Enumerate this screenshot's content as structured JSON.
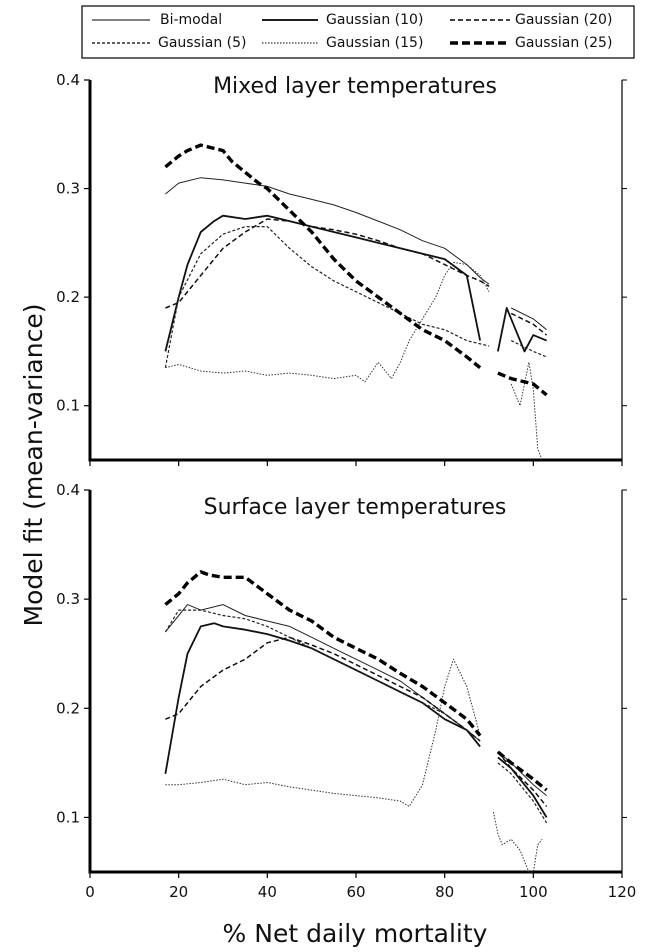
{
  "figure": {
    "ylabel": "Model fit (mean-variance)",
    "xlabel": "% Net daily mortality"
  },
  "legend": [
    {
      "label": "Bi-modal",
      "style": "thin-solid"
    },
    {
      "label": "Gaussian (10)",
      "style": "solid"
    },
    {
      "label": "Gaussian (20)",
      "style": "dashed"
    },
    {
      "label": "Gaussian (5)",
      "style": "fine-dashed"
    },
    {
      "label": "Gaussian (15)",
      "style": "dotted"
    },
    {
      "label": "Gaussian (25)",
      "style": "bold-dashed"
    }
  ],
  "chart_data": [
    {
      "type": "line",
      "title": "Mixed layer temperatures",
      "xlim": [
        0,
        120
      ],
      "ylim": [
        0.05,
        0.4
      ],
      "yticks": [
        0.1,
        0.2,
        0.3,
        0.4
      ],
      "ytick_labels": [
        "0.1",
        "0.2",
        "0.3",
        "0.4"
      ],
      "xticks": [
        0,
        20,
        40,
        60,
        80,
        100,
        120
      ],
      "series": [
        {
          "name": "Bi-modal",
          "style": "thin-solid",
          "color": "#222222",
          "x": [
            17,
            20,
            25,
            30,
            35,
            40,
            45,
            50,
            55,
            60,
            65,
            70,
            75,
            80,
            85,
            88,
            90,
            92,
            95,
            100,
            103
          ],
          "y": [
            0.295,
            0.305,
            0.31,
            0.308,
            0.305,
            0.302,
            0.295,
            0.29,
            0.285,
            0.278,
            0.27,
            0.262,
            0.252,
            0.245,
            0.23,
            0.218,
            0.212,
            null,
            0.19,
            0.18,
            0.17
          ]
        },
        {
          "name": "Gaussian (10)",
          "style": "solid",
          "color": "#111111",
          "x": [
            17,
            20,
            22,
            25,
            28,
            30,
            35,
            40,
            45,
            50,
            55,
            60,
            65,
            70,
            75,
            80,
            85,
            88,
            90,
            92,
            94,
            96,
            98,
            100,
            103
          ],
          "y": [
            0.15,
            0.2,
            0.23,
            0.26,
            0.27,
            0.275,
            0.272,
            0.275,
            0.27,
            0.265,
            0.26,
            0.255,
            0.25,
            0.245,
            0.24,
            0.235,
            0.22,
            0.16,
            null,
            0.15,
            0.19,
            0.17,
            0.15,
            0.165,
            0.16
          ]
        },
        {
          "name": "Gaussian (20)",
          "style": "dashed",
          "color": "#111111",
          "x": [
            17,
            20,
            25,
            30,
            35,
            40,
            45,
            50,
            55,
            60,
            65,
            70,
            75,
            80,
            85,
            88,
            90,
            92,
            95,
            100,
            103
          ],
          "y": [
            0.19,
            0.195,
            0.22,
            0.245,
            0.26,
            0.272,
            0.27,
            0.265,
            0.262,
            0.258,
            0.252,
            0.245,
            0.24,
            0.23,
            0.22,
            0.215,
            0.21,
            null,
            0.185,
            0.175,
            0.165
          ]
        },
        {
          "name": "Gaussian (5)",
          "style": "fine-dashed",
          "color": "#222222",
          "x": [
            17,
            20,
            25,
            30,
            35,
            40,
            45,
            50,
            55,
            60,
            65,
            70,
            75,
            80,
            85,
            90,
            92,
            95,
            100,
            103
          ],
          "y": [
            0.135,
            0.2,
            0.24,
            0.258,
            0.265,
            0.265,
            0.245,
            0.228,
            0.215,
            0.205,
            0.195,
            0.185,
            0.175,
            0.17,
            0.16,
            0.155,
            null,
            0.16,
            0.15,
            0.145
          ]
        },
        {
          "name": "Gaussian (15)",
          "style": "dotted",
          "color": "#333333",
          "x": [
            17,
            20,
            25,
            30,
            35,
            40,
            45,
            50,
            55,
            60,
            62,
            65,
            68,
            70,
            72,
            75,
            78,
            80,
            82,
            85,
            88,
            90,
            92,
            95,
            97,
            99,
            100,
            101,
            102
          ],
          "y": [
            0.135,
            0.138,
            0.132,
            0.13,
            0.132,
            0.128,
            0.13,
            0.128,
            0.125,
            0.128,
            0.122,
            0.14,
            0.125,
            0.14,
            0.16,
            0.18,
            0.2,
            0.22,
            0.232,
            0.23,
            0.22,
            0.205,
            null,
            0.12,
            0.1,
            0.14,
            0.115,
            0.06,
            0.03
          ]
        },
        {
          "name": "Gaussian (25)",
          "style": "bold-dashed",
          "color": "#000000",
          "x": [
            17,
            20,
            22,
            25,
            27,
            30,
            32,
            35,
            38,
            40,
            45,
            50,
            55,
            60,
            65,
            70,
            75,
            80,
            85,
            88,
            90,
            92,
            95,
            100,
            103
          ],
          "y": [
            0.32,
            0.33,
            0.335,
            0.34,
            0.338,
            0.335,
            0.325,
            0.315,
            0.305,
            0.3,
            0.28,
            0.26,
            0.235,
            0.215,
            0.2,
            0.185,
            0.17,
            0.16,
            0.145,
            0.135,
            null,
            0.13,
            0.125,
            0.12,
            0.11
          ]
        }
      ]
    },
    {
      "type": "line",
      "title": "Surface layer temperatures",
      "xlim": [
        0,
        120
      ],
      "ylim": [
        0.05,
        0.4
      ],
      "yticks": [
        0.1,
        0.2,
        0.3,
        0.4
      ],
      "ytick_labels": [
        "0.1",
        "0.2",
        "0.3",
        "0.4"
      ],
      "xticks": [
        0,
        20,
        40,
        60,
        80,
        100,
        120
      ],
      "xtick_labels": [
        "0",
        "20",
        "40",
        "60",
        "80",
        "100",
        "120"
      ],
      "series": [
        {
          "name": "Bi-modal",
          "style": "thin-solid",
          "color": "#222222",
          "x": [
            17,
            20,
            22,
            25,
            30,
            35,
            40,
            45,
            50,
            55,
            60,
            65,
            70,
            75,
            80,
            85,
            88,
            90,
            92,
            95,
            100,
            103
          ],
          "y": [
            0.27,
            0.285,
            0.295,
            0.29,
            0.295,
            0.285,
            0.28,
            0.275,
            0.265,
            0.255,
            0.245,
            0.235,
            0.225,
            0.21,
            0.195,
            0.18,
            0.17,
            null,
            0.16,
            0.15,
            0.13,
            0.12
          ]
        },
        {
          "name": "Gaussian (10)",
          "style": "solid",
          "color": "#111111",
          "x": [
            17,
            20,
            22,
            25,
            28,
            30,
            35,
            40,
            45,
            50,
            55,
            60,
            65,
            70,
            75,
            80,
            85,
            88,
            90,
            92,
            95,
            100,
            103
          ],
          "y": [
            0.14,
            0.21,
            0.25,
            0.275,
            0.278,
            0.275,
            0.272,
            0.268,
            0.262,
            0.255,
            0.245,
            0.235,
            0.225,
            0.215,
            0.205,
            0.19,
            0.18,
            0.165,
            null,
            0.155,
            0.145,
            0.12,
            0.1
          ]
        },
        {
          "name": "Gaussian (20)",
          "style": "dashed",
          "color": "#111111",
          "x": [
            17,
            20,
            25,
            30,
            35,
            40,
            45,
            50,
            55,
            60,
            65,
            70,
            75,
            80,
            85,
            88,
            90,
            92,
            95,
            100,
            103
          ],
          "y": [
            0.19,
            0.195,
            0.22,
            0.235,
            0.245,
            0.26,
            0.265,
            0.258,
            0.25,
            0.24,
            0.23,
            0.22,
            0.21,
            0.195,
            0.18,
            0.17,
            null,
            0.16,
            0.145,
            0.125,
            0.11
          ]
        },
        {
          "name": "Gaussian (5)",
          "style": "fine-dashed",
          "color": "#222222",
          "x": [
            17,
            20,
            25,
            30,
            35,
            40,
            45,
            50,
            55,
            60,
            65,
            70,
            75,
            80,
            85,
            88,
            90,
            92,
            95,
            100,
            103
          ],
          "y": [
            0.27,
            0.29,
            0.29,
            0.285,
            0.282,
            0.275,
            0.265,
            0.255,
            0.245,
            0.235,
            0.225,
            0.215,
            0.205,
            0.195,
            0.18,
            0.17,
            null,
            0.15,
            0.14,
            0.115,
            0.095
          ]
        },
        {
          "name": "Gaussian (15)",
          "style": "dotted",
          "color": "#333333",
          "x": [
            17,
            20,
            25,
            30,
            35,
            40,
            45,
            50,
            55,
            60,
            65,
            70,
            72,
            75,
            78,
            80,
            82,
            85,
            87,
            88,
            90,
            91,
            92,
            93,
            95,
            97,
            99,
            100,
            101,
            102
          ],
          "y": [
            0.13,
            0.13,
            0.132,
            0.135,
            0.13,
            0.132,
            0.128,
            0.125,
            0.122,
            0.12,
            0.118,
            0.115,
            0.11,
            0.13,
            0.18,
            0.22,
            0.245,
            0.22,
            0.19,
            0.175,
            null,
            0.105,
            0.085,
            0.075,
            0.08,
            0.07,
            0.05,
            0.045,
            0.075,
            0.08
          ]
        },
        {
          "name": "Gaussian (25)",
          "style": "bold-dashed",
          "color": "#000000",
          "x": [
            17,
            20,
            22,
            25,
            27,
            30,
            35,
            40,
            45,
            50,
            55,
            60,
            65,
            70,
            75,
            80,
            85,
            88,
            90,
            92,
            95,
            100,
            103
          ],
          "y": [
            0.295,
            0.305,
            0.315,
            0.325,
            0.322,
            0.32,
            0.32,
            0.305,
            0.29,
            0.28,
            0.265,
            0.255,
            0.245,
            0.232,
            0.22,
            0.205,
            0.19,
            0.175,
            null,
            0.16,
            0.15,
            0.135,
            0.125
          ]
        }
      ]
    }
  ]
}
